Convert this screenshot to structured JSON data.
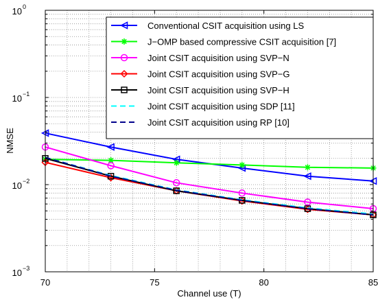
{
  "chart_data": {
    "type": "line",
    "xlabel": "Channel use (T)",
    "ylabel": "NMSE",
    "xlim": [
      70,
      85
    ],
    "ylim": [
      0.001,
      1
    ],
    "yscale": "log",
    "grid": true,
    "legend_position": "top-right",
    "x_ticks": [
      70,
      75,
      80,
      85
    ],
    "x_tick_labels": [
      "70",
      "75",
      "80",
      "85"
    ],
    "y_ticks": [
      0.001,
      0.01,
      0.1,
      1
    ],
    "y_tick_bases": [
      "10",
      "10",
      "10",
      "10"
    ],
    "y_tick_exps": [
      "−3",
      "−2",
      "−1",
      "0"
    ],
    "x": [
      70,
      73,
      76,
      79,
      82,
      85
    ],
    "series": [
      {
        "name": "Conventional CSIT acquisition using LS",
        "color": "#0000ff",
        "marker": "triangle-left",
        "dash": "solid",
        "values": [
          0.039,
          0.027,
          0.0195,
          0.0155,
          0.0125,
          0.011
        ]
      },
      {
        "name": "J−OMP based compressive CSIT acquisition [7]",
        "color": "#00ff00",
        "marker": "star",
        "dash": "solid",
        "values": [
          0.0195,
          0.019,
          0.0178,
          0.0168,
          0.0158,
          0.0155
        ]
      },
      {
        "name": "Joint CSIT acquisition using SVP−N",
        "color": "#ff00ff",
        "marker": "circle",
        "dash": "solid",
        "values": [
          0.027,
          0.0165,
          0.0105,
          0.008,
          0.0063,
          0.0053
        ]
      },
      {
        "name": "Joint CSIT acquisition using SVP−G",
        "color": "#ff0000",
        "marker": "diamond",
        "dash": "solid",
        "values": [
          0.018,
          0.012,
          0.0085,
          0.0065,
          0.0052,
          0.0045
        ]
      },
      {
        "name": "Joint CSIT acquisition using SVP−H",
        "color": "#000000",
        "marker": "square",
        "dash": "solid",
        "values": [
          0.02,
          0.0125,
          0.0085,
          0.0066,
          0.0053,
          0.0045
        ]
      },
      {
        "name": "Joint CSIT acquisition using SDP [11]",
        "color": "#00ffff",
        "marker": "none",
        "dash": "dashed",
        "values": [
          0.0205,
          0.0127,
          0.0087,
          0.0067,
          0.0054,
          0.0046
        ]
      },
      {
        "name": "Joint CSIT acquisition using RP [10]",
        "color": "#00008b",
        "marker": "none",
        "dash": "dashed",
        "values": [
          0.0205,
          0.0125,
          0.0086,
          0.0066,
          0.0053,
          0.0045
        ]
      }
    ]
  }
}
